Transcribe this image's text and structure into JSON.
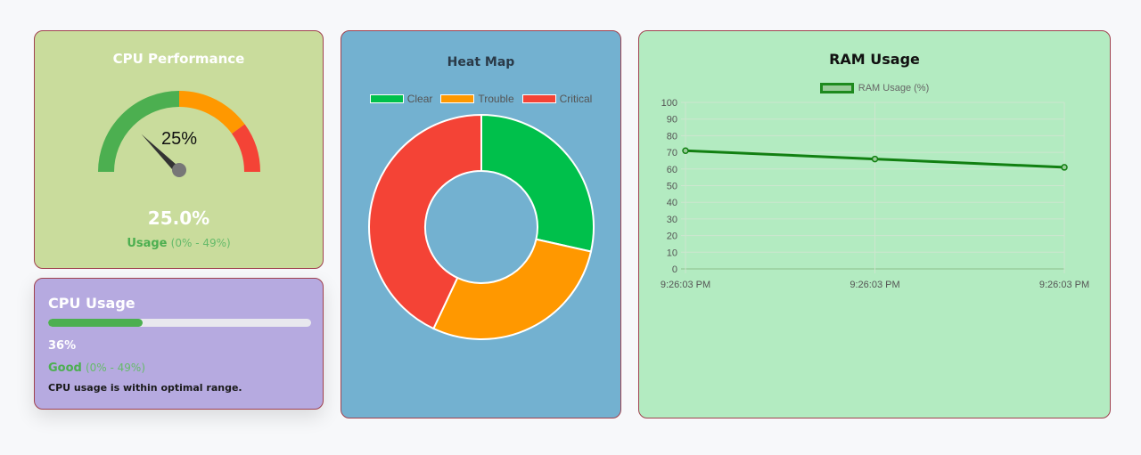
{
  "cpu_performance": {
    "title": "CPU Performance",
    "gauge_label": "25%",
    "gauge_fraction": 0.25,
    "value": "25.0%",
    "status": "Usage",
    "range": "(0% - 49%)",
    "colors": {
      "low": "#4caf50",
      "mid": "#ff9800",
      "high": "#f44336",
      "needle": "#333333"
    }
  },
  "cpu_usage": {
    "title": "CPU Usage",
    "percent": 36,
    "value": "36%",
    "status": "Good",
    "range": "(0% - 49%)",
    "message": "CPU usage is within optimal range.",
    "bar_color": "#4caf50"
  },
  "heat_map": {
    "title": "Heat Map",
    "chart_data": {
      "type": "pie",
      "title": "Heat Map",
      "categories": [
        "Clear",
        "Trouble",
        "Critical"
      ],
      "values": [
        28.5,
        28.5,
        43
      ],
      "colors": [
        "#00c04b",
        "#ff9800",
        "#f44336"
      ]
    }
  },
  "ram_usage": {
    "title": "RAM Usage",
    "chart_data": {
      "type": "line",
      "title": "RAM Usage",
      "x": [
        "9:26:03 PM",
        "9:26:03 PM",
        "9:26:03 PM"
      ],
      "series": [
        {
          "name": "RAM Usage (%)",
          "values": [
            71,
            66,
            61
          ]
        }
      ],
      "ylim": [
        0,
        100
      ],
      "yticks": [
        0,
        10,
        20,
        30,
        40,
        50,
        60,
        70,
        80,
        90,
        100
      ],
      "grid": true,
      "legend": "top",
      "line_color": "#128012"
    }
  }
}
